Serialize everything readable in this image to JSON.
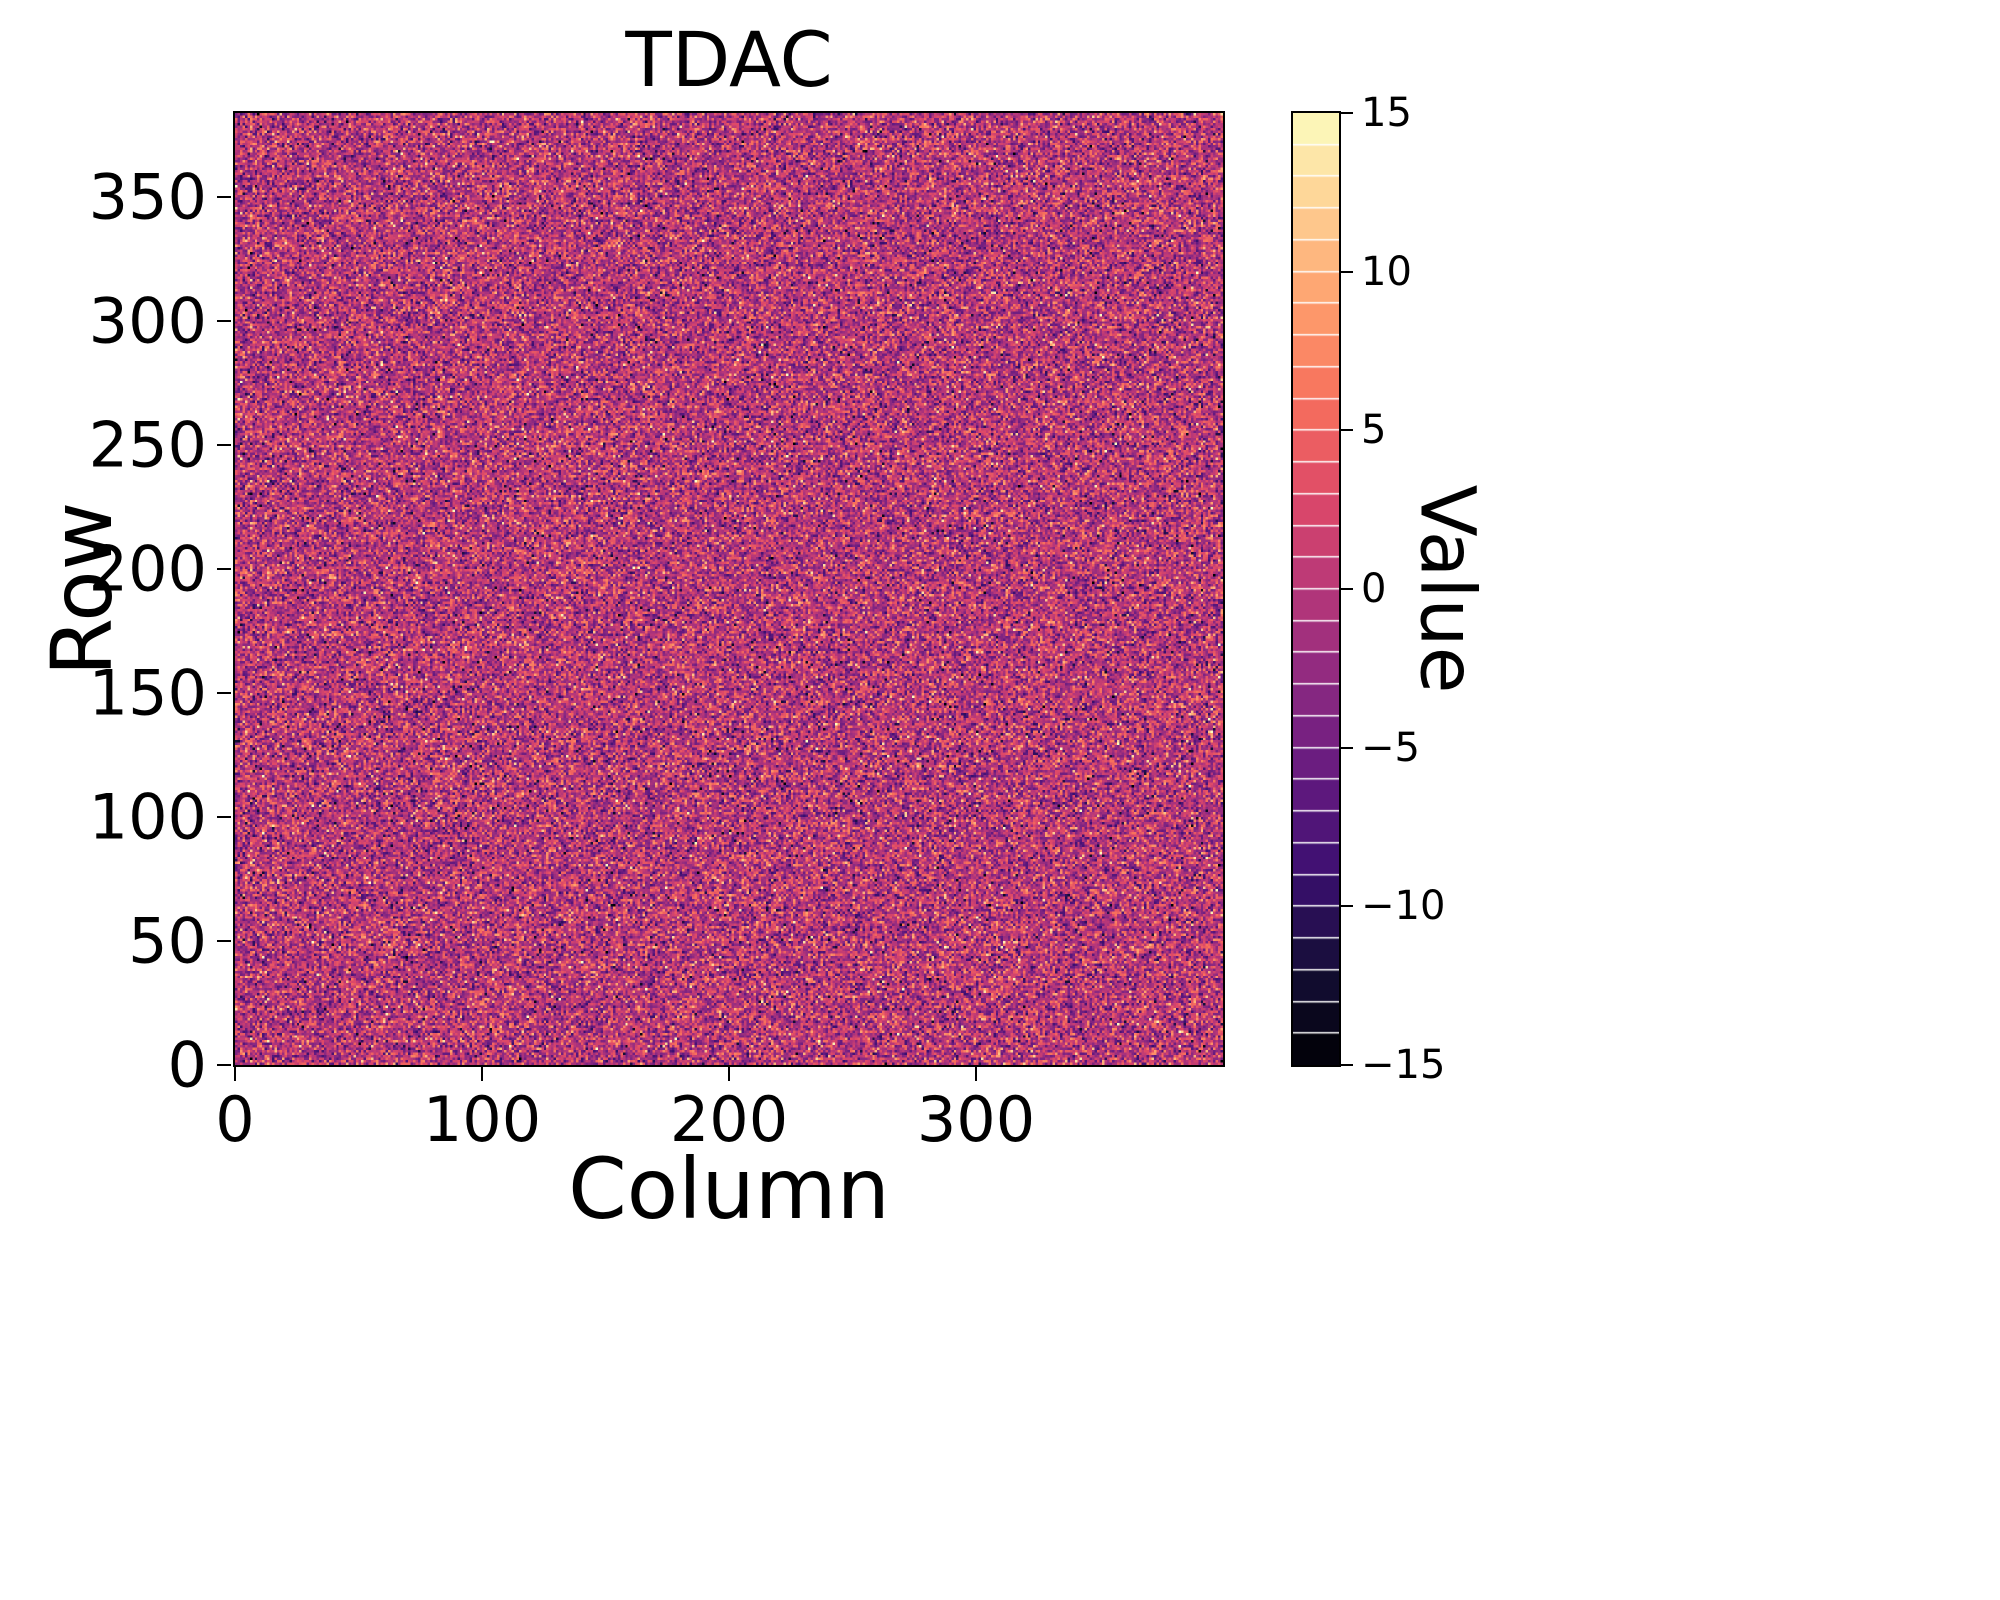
{
  "chart_data": {
    "type": "heatmap",
    "title": "TDAC",
    "xlabel": "Column",
    "ylabel": "Row",
    "colorbar_label": "Value",
    "x_range": [
      0,
      400
    ],
    "y_range": [
      0,
      384
    ],
    "x_ticks": [
      0,
      100,
      200,
      300
    ],
    "y_ticks": [
      0,
      50,
      100,
      150,
      200,
      250,
      300,
      350
    ],
    "value_range": [
      -15,
      15
    ],
    "colorbar_ticks": [
      15,
      10,
      5,
      0,
      -5,
      -10,
      -15
    ],
    "colorbar_levels": 30,
    "grid": {
      "cols": 400,
      "rows": 384
    },
    "data_description": "Per-pixel TDAC tuning values: random noise centered at 0 (mostly between -5 and 5, magenta/purple) with sparse bright outliers near +10..+15 (orange/white speckles) and rare dark outliers near -10..-15, clipped to [-15, 15]",
    "noise": {
      "mean": 0,
      "std": 4.5,
      "clip_min": -15,
      "clip_max": 15,
      "seed": 42,
      "quantized": true
    },
    "colormap": {
      "name": "magma",
      "stops": [
        [
          0.0,
          "#000004"
        ],
        [
          0.1,
          "#140e36"
        ],
        [
          0.2,
          "#3b0f70"
        ],
        [
          0.3,
          "#641a80"
        ],
        [
          0.4,
          "#8c2981"
        ],
        [
          0.5,
          "#b73779"
        ],
        [
          0.6,
          "#de4968"
        ],
        [
          0.7,
          "#f7705c"
        ],
        [
          0.8,
          "#fe9f6d"
        ],
        [
          0.9,
          "#fecf92"
        ],
        [
          1.0,
          "#fcfdbf"
        ]
      ]
    },
    "colorbar_edge_color": "#ffffff",
    "spine_color": "#000000",
    "background_color": "#ffffff"
  }
}
